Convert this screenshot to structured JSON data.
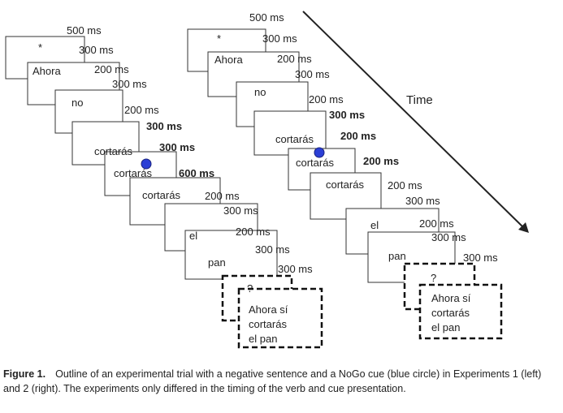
{
  "diagram": {
    "time_label": "Time",
    "experiment_1": {
      "frames": [
        {
          "text": "*",
          "duration": "500 ms",
          "bold": false,
          "cue": false
        },
        {
          "text": "Ahora",
          "duration": "300 ms",
          "bold": false,
          "cue": false
        },
        {
          "text": "",
          "duration": "200 ms",
          "bold": false,
          "cue": false
        },
        {
          "text": "no",
          "duration": "300 ms",
          "bold": false,
          "cue": false
        },
        {
          "text": "",
          "duration": "200 ms",
          "bold": false,
          "cue": false
        },
        {
          "text": "cortarás",
          "duration": "300 ms",
          "bold": true,
          "cue": false
        },
        {
          "text": "cortarás",
          "duration": "300 ms",
          "bold": true,
          "cue": true
        },
        {
          "text": "",
          "duration": "600 ms",
          "bold": true,
          "cue": false
        },
        {
          "text": "cortarás",
          "duration": "200 ms",
          "bold": false,
          "cue": false
        },
        {
          "text": "",
          "duration": "300 ms",
          "bold": false,
          "cue": false
        },
        {
          "text": "el",
          "duration": "200 ms",
          "bold": false,
          "cue": false
        },
        {
          "text": "",
          "duration": "300 ms",
          "bold": false,
          "cue": false
        },
        {
          "text": "pan",
          "duration": "300 ms",
          "bold": false,
          "cue": false
        },
        {
          "text": "?",
          "duration": "",
          "bold": false,
          "cue": false,
          "dashed": true
        },
        {
          "text": [
            "Ahora sí",
            "cortarás",
            "el pan"
          ],
          "duration": "",
          "bold": false,
          "cue": false,
          "dashed": true
        }
      ]
    },
    "experiment_2": {
      "frames": [
        {
          "text": "*",
          "duration": "500 ms",
          "bold": false,
          "cue": false
        },
        {
          "text": "Ahora",
          "duration": "300 ms",
          "bold": false,
          "cue": false
        },
        {
          "text": "",
          "duration": "200 ms",
          "bold": false,
          "cue": false
        },
        {
          "text": "no",
          "duration": "300 ms",
          "bold": false,
          "cue": false
        },
        {
          "text": "",
          "duration": "200 ms",
          "bold": false,
          "cue": false
        },
        {
          "text": "cortarás",
          "duration": "300 ms",
          "bold": true,
          "cue": false
        },
        {
          "text": "cortarás",
          "duration": "200 ms",
          "bold": true,
          "cue": true
        },
        {
          "text": "",
          "duration": "200 ms",
          "bold": true,
          "cue": false
        },
        {
          "text": "cortarás",
          "duration": "200 ms",
          "bold": false,
          "cue": false
        },
        {
          "text": "",
          "duration": "300 ms",
          "bold": false,
          "cue": false
        },
        {
          "text": "el",
          "duration": "200 ms",
          "bold": false,
          "cue": false
        },
        {
          "text": "",
          "duration": "300 ms",
          "bold": false,
          "cue": false
        },
        {
          "text": "pan",
          "duration": "300 ms",
          "bold": false,
          "cue": false
        },
        {
          "text": "?",
          "duration": "",
          "bold": false,
          "cue": false,
          "dashed": true
        },
        {
          "text": [
            "Ahora sí",
            "cortarás",
            "el pan"
          ],
          "duration": "",
          "bold": false,
          "cue": false,
          "dashed": true
        }
      ]
    },
    "colors": {
      "cue": "#2b3fd6",
      "cue_stroke": "#1a237e",
      "stroke": "#333333",
      "text": "#222222"
    }
  },
  "caption": {
    "label": "Figure 1.",
    "text": "Outline of an experimental trial with a negative sentence and a NoGo cue (blue circle) in Experiments 1 (left) and 2 (right). The experiments only differed in the timing of the verb and cue presentation."
  }
}
